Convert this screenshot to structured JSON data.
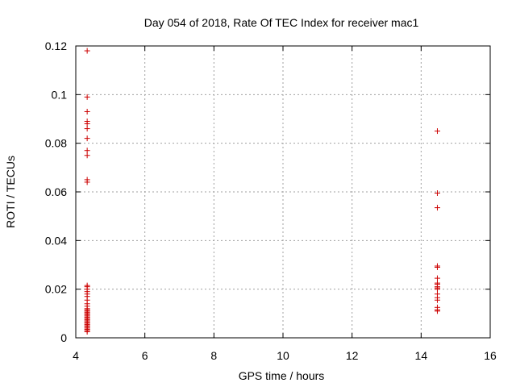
{
  "chart_data": {
    "type": "scatter",
    "title": "Day 054 of 2018, Rate Of TEC Index for receiver mac1",
    "xlabel": "GPS time / hours",
    "ylabel": "ROTI / TECUs",
    "xlim": [
      4,
      16
    ],
    "ylim": [
      0,
      0.12
    ],
    "xticks": [
      "4",
      "6",
      "8",
      "10",
      "12",
      "14",
      "16"
    ],
    "yticks": [
      "0",
      "0.02",
      "0.04",
      "0.06",
      "0.08",
      "0.1",
      "0.12"
    ],
    "grid": true,
    "marker": "plus",
    "color": "#cc0000",
    "series": [
      {
        "x": [
          4.33,
          4.33,
          4.33,
          4.33,
          4.33,
          4.33,
          4.33,
          4.33,
          4.33,
          4.33,
          4.33,
          4.33,
          4.33,
          4.33,
          4.33,
          4.33,
          4.33,
          4.33,
          4.33,
          4.33,
          4.33,
          4.33,
          4.33,
          4.33,
          4.33,
          4.33,
          4.33,
          4.33,
          4.33,
          4.33,
          4.33,
          4.33,
          4.33,
          4.33,
          4.33,
          4.33,
          4.33,
          4.33,
          4.33,
          4.33,
          14.47,
          14.47,
          14.47,
          14.47,
          14.47,
          14.47,
          14.47,
          14.47,
          14.47,
          14.47,
          14.47,
          14.47,
          14.47,
          14.47,
          14.47,
          14.47,
          14.47
        ],
        "y": [
          0.118,
          0.099,
          0.093,
          0.089,
          0.088,
          0.086,
          0.082,
          0.077,
          0.075,
          0.065,
          0.064,
          0.0215,
          0.021,
          0.02,
          0.019,
          0.018,
          0.017,
          0.0155,
          0.014,
          0.013,
          0.012,
          0.0115,
          0.011,
          0.0105,
          0.01,
          0.0095,
          0.009,
          0.0085,
          0.008,
          0.0075,
          0.007,
          0.0065,
          0.006,
          0.0055,
          0.005,
          0.0045,
          0.004,
          0.0035,
          0.003,
          0.0025,
          0.085,
          0.0595,
          0.0535,
          0.0295,
          0.029,
          0.0245,
          0.0225,
          0.022,
          0.021,
          0.0205,
          0.02,
          0.018,
          0.0165,
          0.0155,
          0.0125,
          0.0115,
          0.011
        ]
      }
    ]
  }
}
